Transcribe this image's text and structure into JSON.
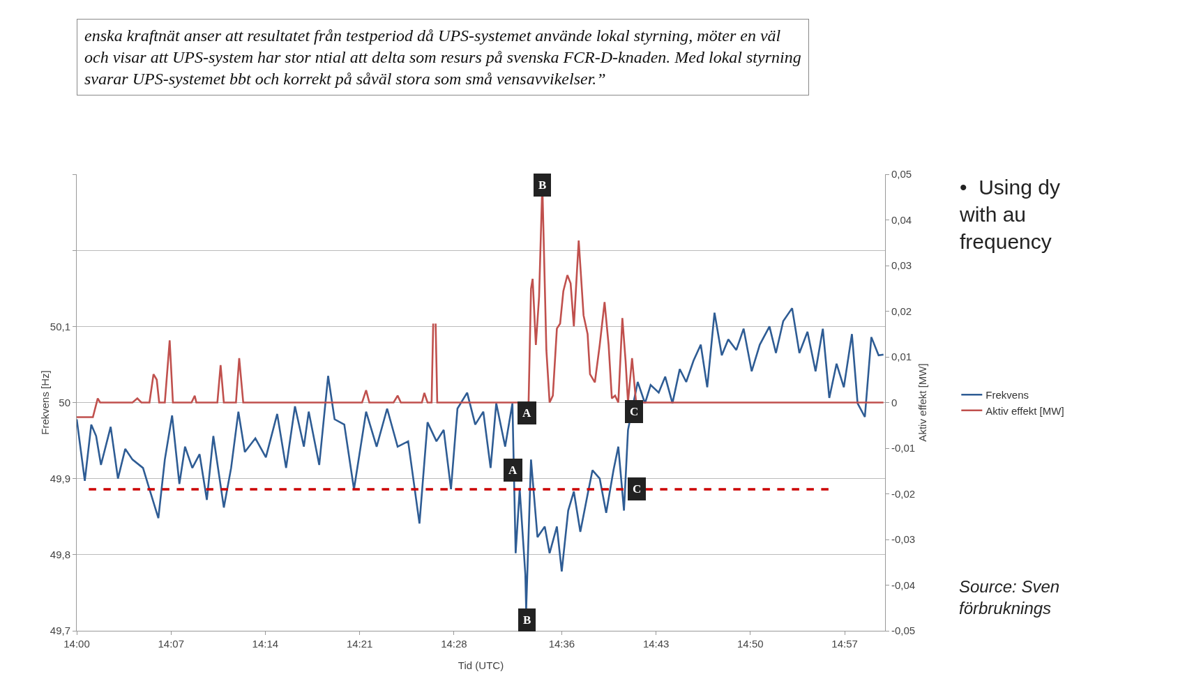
{
  "chart_data": {
    "type": "line",
    "xlabel": "Tid (UTC)",
    "ylabel": "Frekvens [Hz]",
    "y2label": "Aktiv effekt [MW]",
    "xlim": [
      14,
      15.0
    ],
    "xticks": [
      {
        "value": 14,
        "label": "14:00"
      },
      {
        "value": 14.1167,
        "label": "14:07"
      },
      {
        "value": 14.2333,
        "label": "14:14"
      },
      {
        "value": 14.35,
        "label": "14:21"
      },
      {
        "value": 14.4667,
        "label": "14:28"
      },
      {
        "value": 14.6,
        "label": "14:36"
      },
      {
        "value": 14.7167,
        "label": "14:43"
      },
      {
        "value": 14.8333,
        "label": "14:50"
      },
      {
        "value": 14.95,
        "label": "14:57"
      }
    ],
    "ylim": [
      49.7,
      50.3
    ],
    "yticks": [
      {
        "value": 49.7,
        "label": "49,7"
      },
      {
        "value": 49.8,
        "label": "49,8"
      },
      {
        "value": 49.9,
        "label": "49,9"
      },
      50,
      {
        "value": 50.1,
        "label": "50,1"
      },
      {
        "value": 50.2,
        "label": null
      },
      {
        "value": 50.3,
        "label": null
      }
    ],
    "y2lim": [
      -0.05,
      0.05
    ],
    "y2ticks": [
      {
        "value": -0.05,
        "label": "-0,05"
      },
      {
        "value": -0.04,
        "label": "-0,04"
      },
      {
        "value": -0.03,
        "label": "-0,03"
      },
      {
        "value": -0.02,
        "label": "-0,02"
      },
      {
        "value": -0.01,
        "label": "-0,01"
      },
      0,
      {
        "value": 0.01,
        "label": "0,01"
      },
      {
        "value": 0.02,
        "label": "0,02"
      },
      {
        "value": 0.03,
        "label": "0,03"
      },
      {
        "value": 0.04,
        "label": "0,04"
      },
      {
        "value": 0.05,
        "label": "0,05"
      }
    ],
    "grid": "y",
    "legend": "right",
    "series": [
      {
        "name": "Frekvens",
        "color": "#2e5c94",
        "x": [
          14.0,
          14.01,
          14.018,
          14.024,
          14.03,
          14.042,
          14.051,
          14.06,
          14.069,
          14.082,
          14.09,
          14.101,
          14.109,
          14.118,
          14.127,
          14.134,
          14.143,
          14.152,
          14.161,
          14.169,
          14.182,
          14.191,
          14.2,
          14.208,
          14.221,
          14.234,
          14.248,
          14.259,
          14.27,
          14.281,
          14.287,
          14.3,
          14.311,
          14.319,
          14.331,
          14.343,
          14.358,
          14.371,
          14.384,
          14.397,
          14.41,
          14.424,
          14.434,
          14.445,
          14.454,
          14.463,
          14.471,
          14.483,
          14.493,
          14.503,
          14.512,
          14.519,
          14.53,
          14.539,
          14.543,
          14.548,
          14.555,
          14.556,
          14.562,
          14.57,
          14.579,
          14.585,
          14.594,
          14.6,
          14.608,
          14.615,
          14.623,
          14.632,
          14.638,
          14.647,
          14.655,
          14.664,
          14.67,
          14.677,
          14.682,
          14.694,
          14.703,
          14.71,
          14.72,
          14.728,
          14.737,
          14.746,
          14.754,
          14.763,
          14.772,
          14.78,
          14.789,
          14.798,
          14.806,
          14.816,
          14.825,
          14.835,
          14.845,
          14.857,
          14.865,
          14.874,
          14.885,
          14.894,
          14.904,
          14.914,
          14.923,
          14.931,
          14.94,
          14.949,
          14.959,
          14.966,
          14.975,
          14.983,
          14.992,
          14.998
        ],
        "values": [
          49.978,
          49.897,
          49.971,
          49.956,
          49.918,
          49.968,
          49.9,
          49.939,
          49.925,
          49.914,
          49.886,
          49.848,
          49.925,
          49.983,
          49.893,
          49.942,
          49.914,
          49.932,
          49.872,
          49.956,
          49.862,
          49.914,
          49.988,
          49.935,
          49.953,
          49.928,
          49.985,
          49.914,
          49.995,
          49.942,
          49.988,
          49.918,
          50.035,
          49.978,
          49.971,
          49.886,
          49.988,
          49.942,
          49.992,
          49.942,
          49.949,
          49.841,
          49.974,
          49.949,
          49.964,
          49.886,
          49.992,
          50.013,
          49.971,
          49.988,
          49.914,
          49.999,
          49.942,
          49.999,
          49.802,
          49.886,
          49.774,
          49.728,
          49.925,
          49.823,
          49.837,
          49.802,
          49.837,
          49.778,
          49.858,
          49.883,
          49.83,
          49.879,
          49.911,
          49.9,
          49.855,
          49.911,
          49.942,
          49.858,
          49.964,
          50.027,
          49.999,
          50.023,
          50.013,
          50.034,
          49.999,
          50.044,
          50.027,
          50.055,
          50.076,
          50.02,
          50.118,
          50.062,
          50.083,
          50.069,
          50.097,
          50.041,
          50.076,
          50.1,
          50.065,
          50.107,
          50.124,
          50.065,
          50.093,
          50.041,
          50.097,
          50.006,
          50.051,
          50.02,
          50.09,
          49.999,
          49.981,
          50.086,
          50.062,
          50.063
        ]
      },
      {
        "name": "Aktiv effekt [MW]",
        "color": "#c0504d",
        "axis": "y2",
        "x": [
          14.0,
          14.02,
          14.026,
          14.029,
          14.069,
          14.075,
          14.08,
          14.09,
          14.095,
          14.099,
          14.102,
          14.109,
          14.115,
          14.119,
          14.142,
          14.146,
          14.148,
          14.174,
          14.178,
          14.182,
          14.197,
          14.201,
          14.206,
          14.353,
          14.358,
          14.362,
          14.392,
          14.397,
          14.401,
          14.427,
          14.43,
          14.434,
          14.439,
          14.441,
          14.443,
          14.444,
          14.446,
          14.559,
          14.562,
          14.564,
          14.568,
          14.572,
          14.576,
          14.581,
          14.585,
          14.589,
          14.594,
          14.598,
          14.602,
          14.607,
          14.611,
          14.615,
          14.621,
          14.627,
          14.632,
          14.635,
          14.641,
          14.647,
          14.653,
          14.658,
          14.662,
          14.666,
          14.67,
          14.675,
          14.679,
          14.682,
          14.687,
          14.692,
          14.998
        ],
        "values": [
          -0.0032,
          -0.0032,
          0.0009,
          0,
          0,
          0.0009,
          0,
          0,
          0.0062,
          0.005,
          0,
          0,
          0.0136,
          0,
          0,
          0.0015,
          0,
          0,
          0.0082,
          0,
          0,
          0.0097,
          0,
          0,
          0.0027,
          0,
          0,
          0.0015,
          0,
          0,
          0.0021,
          0,
          0,
          0.0173,
          null,
          0.0173,
          0,
          0,
          0.0249,
          0.0271,
          0.0126,
          0.0232,
          0.0478,
          0.0115,
          0,
          0.0015,
          0.0162,
          0.0173,
          0.0244,
          0.0279,
          0.0261,
          0.0167,
          0.0355,
          0.0191,
          0.015,
          0.0062,
          0.0044,
          0.0126,
          0.022,
          0.0126,
          0.0009,
          0.0015,
          0,
          0.0185,
          0.0091,
          0,
          0.0097,
          0,
          0
        ]
      }
    ],
    "ref_lines": [
      {
        "axis": "y",
        "value": 49.886,
        "color": "#cc0000",
        "line_style": "dashed"
      }
    ],
    "annotations": [
      "enska kraftnät anser att resultatet från testperiod då UPS-systemet använde lokal styrning, möter en väl och visar att UPS-system har stor ntial att delta som resurs på svenska FCR-D-knaden. Med lokal styrning svarar UPS-systemet bbt och korrekt på såväl stora som små vensavvikelser.”",
      "•  Using dy with au frequency",
      "Source: Sven förbruknings",
      {
        "text": "A",
        "x": 14.557,
        "y": 49.986
      },
      {
        "text": "B",
        "x": 14.576,
        "y": 50.286
      },
      {
        "text": "C",
        "x": 14.689,
        "y": 49.988
      },
      {
        "text": "A",
        "x": 14.54,
        "y": 49.911
      },
      {
        "text": "B",
        "x": 14.557,
        "y": 49.714
      },
      {
        "text": "C",
        "x": 14.693,
        "y": 49.886
      }
    ]
  }
}
